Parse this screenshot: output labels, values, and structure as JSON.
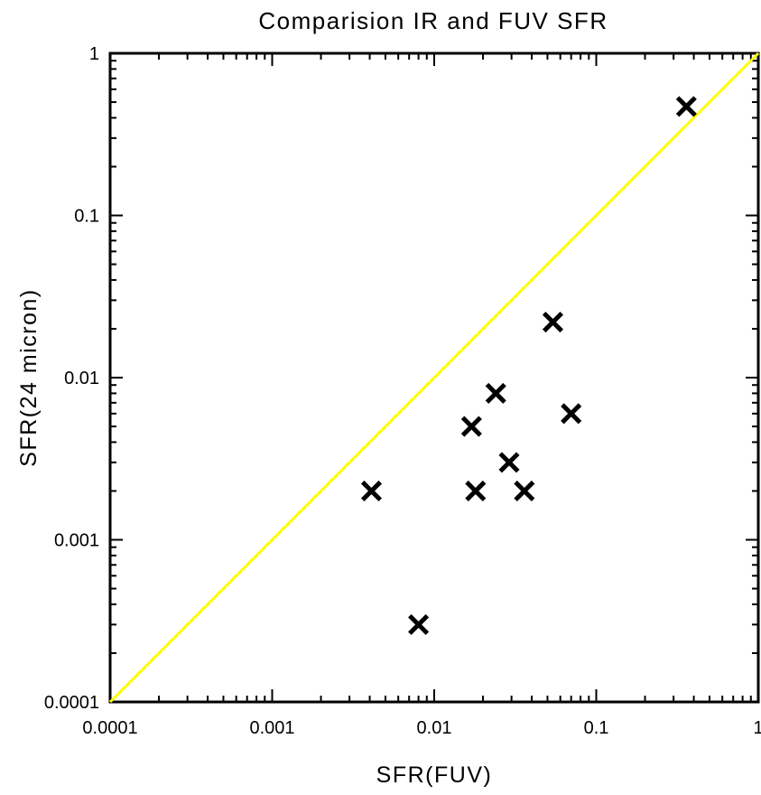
{
  "chart_data": {
    "type": "scatter",
    "title": "Comparision IR and FUV SFR",
    "xlabel": "SFR(FUV)",
    "ylabel": "SFR(24 micron)",
    "xscale": "log",
    "yscale": "log",
    "xlim": [
      0.0001,
      1
    ],
    "ylim": [
      0.0001,
      1
    ],
    "x_ticks": [
      "0.0001",
      "0.001",
      "0.01",
      "0.1",
      "1"
    ],
    "y_ticks": [
      "0.0001",
      "0.001",
      "0.01",
      "0.1",
      "1"
    ],
    "grid": false,
    "legend": "none",
    "reference_line": {
      "type": "y=x",
      "color": "#ffff00"
    },
    "marker": {
      "shape": "x",
      "color": "#000000"
    },
    "series": [
      {
        "points": [
          {
            "x": 0.36,
            "y": 0.47
          },
          {
            "x": 0.054,
            "y": 0.022
          },
          {
            "x": 0.07,
            "y": 0.006
          },
          {
            "x": 0.024,
            "y": 0.008
          },
          {
            "x": 0.017,
            "y": 0.005
          },
          {
            "x": 0.029,
            "y": 0.003
          },
          {
            "x": 0.018,
            "y": 0.002
          },
          {
            "x": 0.036,
            "y": 0.002
          },
          {
            "x": 0.0041,
            "y": 0.002
          },
          {
            "x": 0.008,
            "y": 0.0003
          }
        ]
      }
    ]
  }
}
